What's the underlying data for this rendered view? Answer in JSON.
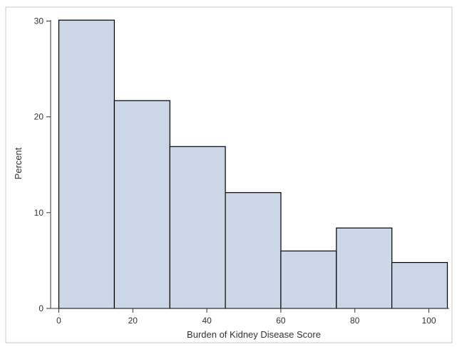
{
  "chart_data": {
    "type": "bar",
    "subtype": "histogram",
    "xlabel": "Burden of Kidney Disease Score",
    "ylabel": "Percent",
    "xlim": [
      0,
      105
    ],
    "ylim": [
      0,
      30
    ],
    "xticks": [
      "0",
      "20",
      "40",
      "60",
      "80",
      "100"
    ],
    "yticks": [
      "0",
      "10",
      "20",
      "30"
    ],
    "bins": [
      {
        "from": 0,
        "to": 15,
        "value": 30.1
      },
      {
        "from": 15,
        "to": 30,
        "value": 21.7
      },
      {
        "from": 30,
        "to": 45,
        "value": 16.9
      },
      {
        "from": 45,
        "to": 60,
        "value": 12.1
      },
      {
        "from": 60,
        "to": 75,
        "value": 6.0
      },
      {
        "from": 75,
        "to": 90,
        "value": 8.4
      },
      {
        "from": 90,
        "to": 105,
        "value": 4.8
      }
    ],
    "grid": false,
    "legend": "none",
    "colors": {
      "bar_fill": "#cbd7e6",
      "bar_stroke": "#000000",
      "frame": "#c8c8c8"
    }
  }
}
